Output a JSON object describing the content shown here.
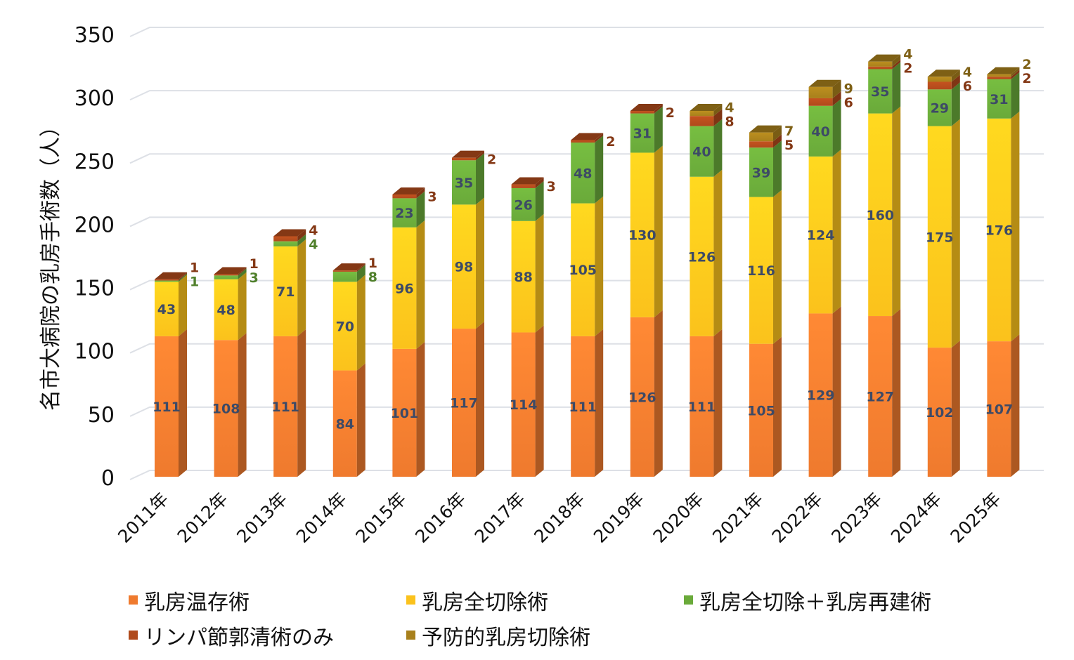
{
  "chart_data": {
    "type": "bar",
    "stacked": true,
    "title": "",
    "xlabel": "",
    "ylabel": "名市大病院の乳房手術数（人）",
    "ylim": [
      0,
      350
    ],
    "yticks": [
      0,
      50,
      100,
      150,
      200,
      250,
      300,
      350
    ],
    "grid": true,
    "legend_position": "bottom",
    "categories": [
      "2011年",
      "2012年",
      "2013年",
      "2014年",
      "2015年",
      "2016年",
      "2017年",
      "2018年",
      "2019年",
      "2020年",
      "2021年",
      "2022年",
      "2023年",
      "2024年",
      "2025年"
    ],
    "series": [
      {
        "name": "乳房温存術",
        "color": "#ef7a2e",
        "values": [
          111,
          108,
          111,
          84,
          101,
          117,
          114,
          111,
          126,
          111,
          105,
          129,
          127,
          102,
          107
        ]
      },
      {
        "name": "乳房全切除術",
        "color": "#fbc21c",
        "values": [
          43,
          48,
          71,
          70,
          96,
          98,
          88,
          105,
          130,
          126,
          116,
          124,
          160,
          175,
          176
        ]
      },
      {
        "name": "乳房全切除＋乳房再建術",
        "color": "#6aaa3a",
        "values": [
          1,
          3,
          4,
          8,
          23,
          35,
          26,
          48,
          31,
          40,
          39,
          40,
          35,
          29,
          31
        ]
      },
      {
        "name": "リンパ節郭清術のみ",
        "color": "#b04a1c",
        "values": [
          1,
          1,
          4,
          1,
          3,
          2,
          3,
          2,
          2,
          8,
          5,
          6,
          2,
          6,
          2
        ]
      },
      {
        "name": "予防的乳房切除術",
        "color": "#a8801c",
        "values": [
          0,
          0,
          0,
          0,
          0,
          0,
          0,
          0,
          0,
          4,
          7,
          9,
          4,
          4,
          2
        ]
      }
    ]
  }
}
